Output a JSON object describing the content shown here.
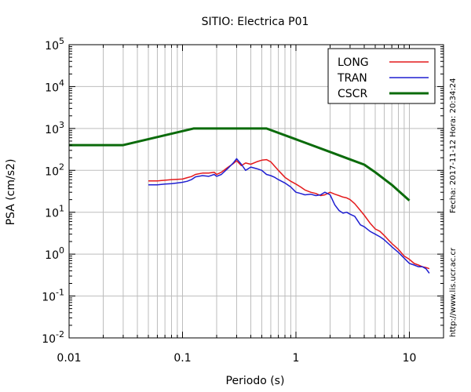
{
  "chart_data": {
    "type": "line",
    "title": "SITIO: Electrica P01",
    "xlabel": "Periodo (s)",
    "ylabel": "PSA (cm/s2)",
    "x_scale": "log",
    "y_scale": "log",
    "xlim": [
      0.01,
      20
    ],
    "ylim": [
      0.01,
      100000
    ],
    "grid": true,
    "legend_position": "top-right",
    "x_tick_labels": [
      {
        "value": 0.01,
        "label": "0.01"
      },
      {
        "value": 0.1,
        "label": "0.1"
      },
      {
        "value": 1,
        "label": "1"
      },
      {
        "value": 10,
        "label": "10"
      }
    ],
    "y_tick_labels": [
      {
        "value": 0.01,
        "base": "10",
        "exp": "-2"
      },
      {
        "value": 0.1,
        "base": "10",
        "exp": "-1"
      },
      {
        "value": 1,
        "base": "10",
        "exp": "0"
      },
      {
        "value": 10,
        "base": "10",
        "exp": "1"
      },
      {
        "value": 100,
        "base": "10",
        "exp": "2"
      },
      {
        "value": 1000,
        "base": "10",
        "exp": "3"
      },
      {
        "value": 10000,
        "base": "10",
        "exp": "4"
      },
      {
        "value": 100000,
        "base": "10",
        "exp": "5"
      }
    ],
    "series": [
      {
        "name": "LONG",
        "color": "#e41a1c",
        "x": [
          0.05,
          0.06,
          0.07,
          0.08,
          0.09,
          0.1,
          0.11,
          0.12,
          0.13,
          0.15,
          0.17,
          0.19,
          0.2,
          0.22,
          0.25,
          0.28,
          0.3,
          0.33,
          0.36,
          0.4,
          0.45,
          0.5,
          0.55,
          0.6,
          0.65,
          0.7,
          0.8,
          0.9,
          1.0,
          1.1,
          1.2,
          1.35,
          1.5,
          1.65,
          1.8,
          2.0,
          2.2,
          2.4,
          2.6,
          2.8,
          3.0,
          3.3,
          3.7,
          4.0,
          4.5,
          5.0,
          5.5,
          6.0,
          6.5,
          7.0,
          8.0,
          9.0,
          10.0,
          11.0,
          12.0,
          13.0,
          14.0,
          15.0
        ],
        "values": [
          56,
          56,
          58,
          60,
          61,
          62,
          67,
          71,
          80,
          86,
          86,
          90,
          80,
          90,
          117,
          145,
          170,
          130,
          150,
          140,
          160,
          175,
          180,
          160,
          125,
          100,
          68,
          55,
          47,
          40,
          34,
          30,
          28,
          25,
          26,
          30,
          27,
          25,
          23,
          22,
          20,
          16,
          11,
          8.5,
          5.5,
          4.0,
          3.5,
          2.8,
          2.2,
          1.8,
          1.3,
          0.9,
          0.75,
          0.6,
          0.55,
          0.5,
          0.48,
          0.45
        ]
      },
      {
        "name": "TRAN",
        "color": "#1f1fd1",
        "x": [
          0.05,
          0.06,
          0.07,
          0.08,
          0.09,
          0.1,
          0.11,
          0.12,
          0.13,
          0.15,
          0.17,
          0.19,
          0.2,
          0.22,
          0.25,
          0.28,
          0.3,
          0.33,
          0.36,
          0.4,
          0.45,
          0.5,
          0.55,
          0.6,
          0.65,
          0.7,
          0.8,
          0.9,
          1.0,
          1.1,
          1.2,
          1.35,
          1.5,
          1.65,
          1.8,
          2.0,
          2.2,
          2.4,
          2.6,
          2.8,
          3.0,
          3.3,
          3.7,
          4.0,
          4.5,
          5.0,
          5.5,
          6.0,
          6.5,
          7.0,
          8.0,
          9.0,
          10.0,
          11.0,
          12.0,
          13.0,
          14.0,
          15.0
        ],
        "values": [
          45,
          45,
          47,
          48,
          50,
          52,
          55,
          60,
          70,
          75,
          72,
          80,
          72,
          80,
          110,
          150,
          190,
          140,
          100,
          120,
          110,
          100,
          80,
          75,
          68,
          60,
          50,
          40,
          30,
          28,
          26,
          27,
          25,
          26,
          30,
          26,
          15,
          11,
          9.5,
          10,
          9,
          8,
          5,
          4.5,
          3.5,
          3.0,
          2.6,
          2.2,
          1.8,
          1.5,
          1.1,
          0.8,
          0.6,
          0.55,
          0.5,
          0.5,
          0.45,
          0.35
        ]
      },
      {
        "name": "CSCR",
        "color": "#0b6b0b",
        "x": [
          0.01,
          0.03,
          0.125,
          0.55,
          1.0,
          2.0,
          3.0,
          4.0,
          5.0,
          7.0,
          10.0
        ],
        "values": [
          400,
          400,
          1000,
          1000,
          550,
          275,
          183,
          137,
          90,
          45,
          19
        ]
      }
    ]
  },
  "side_texts": {
    "timestamp": "Fecha: 2017-11-12 Hora: 20:34:24",
    "url": "http://www.lis.ucr.ac.cr"
  }
}
